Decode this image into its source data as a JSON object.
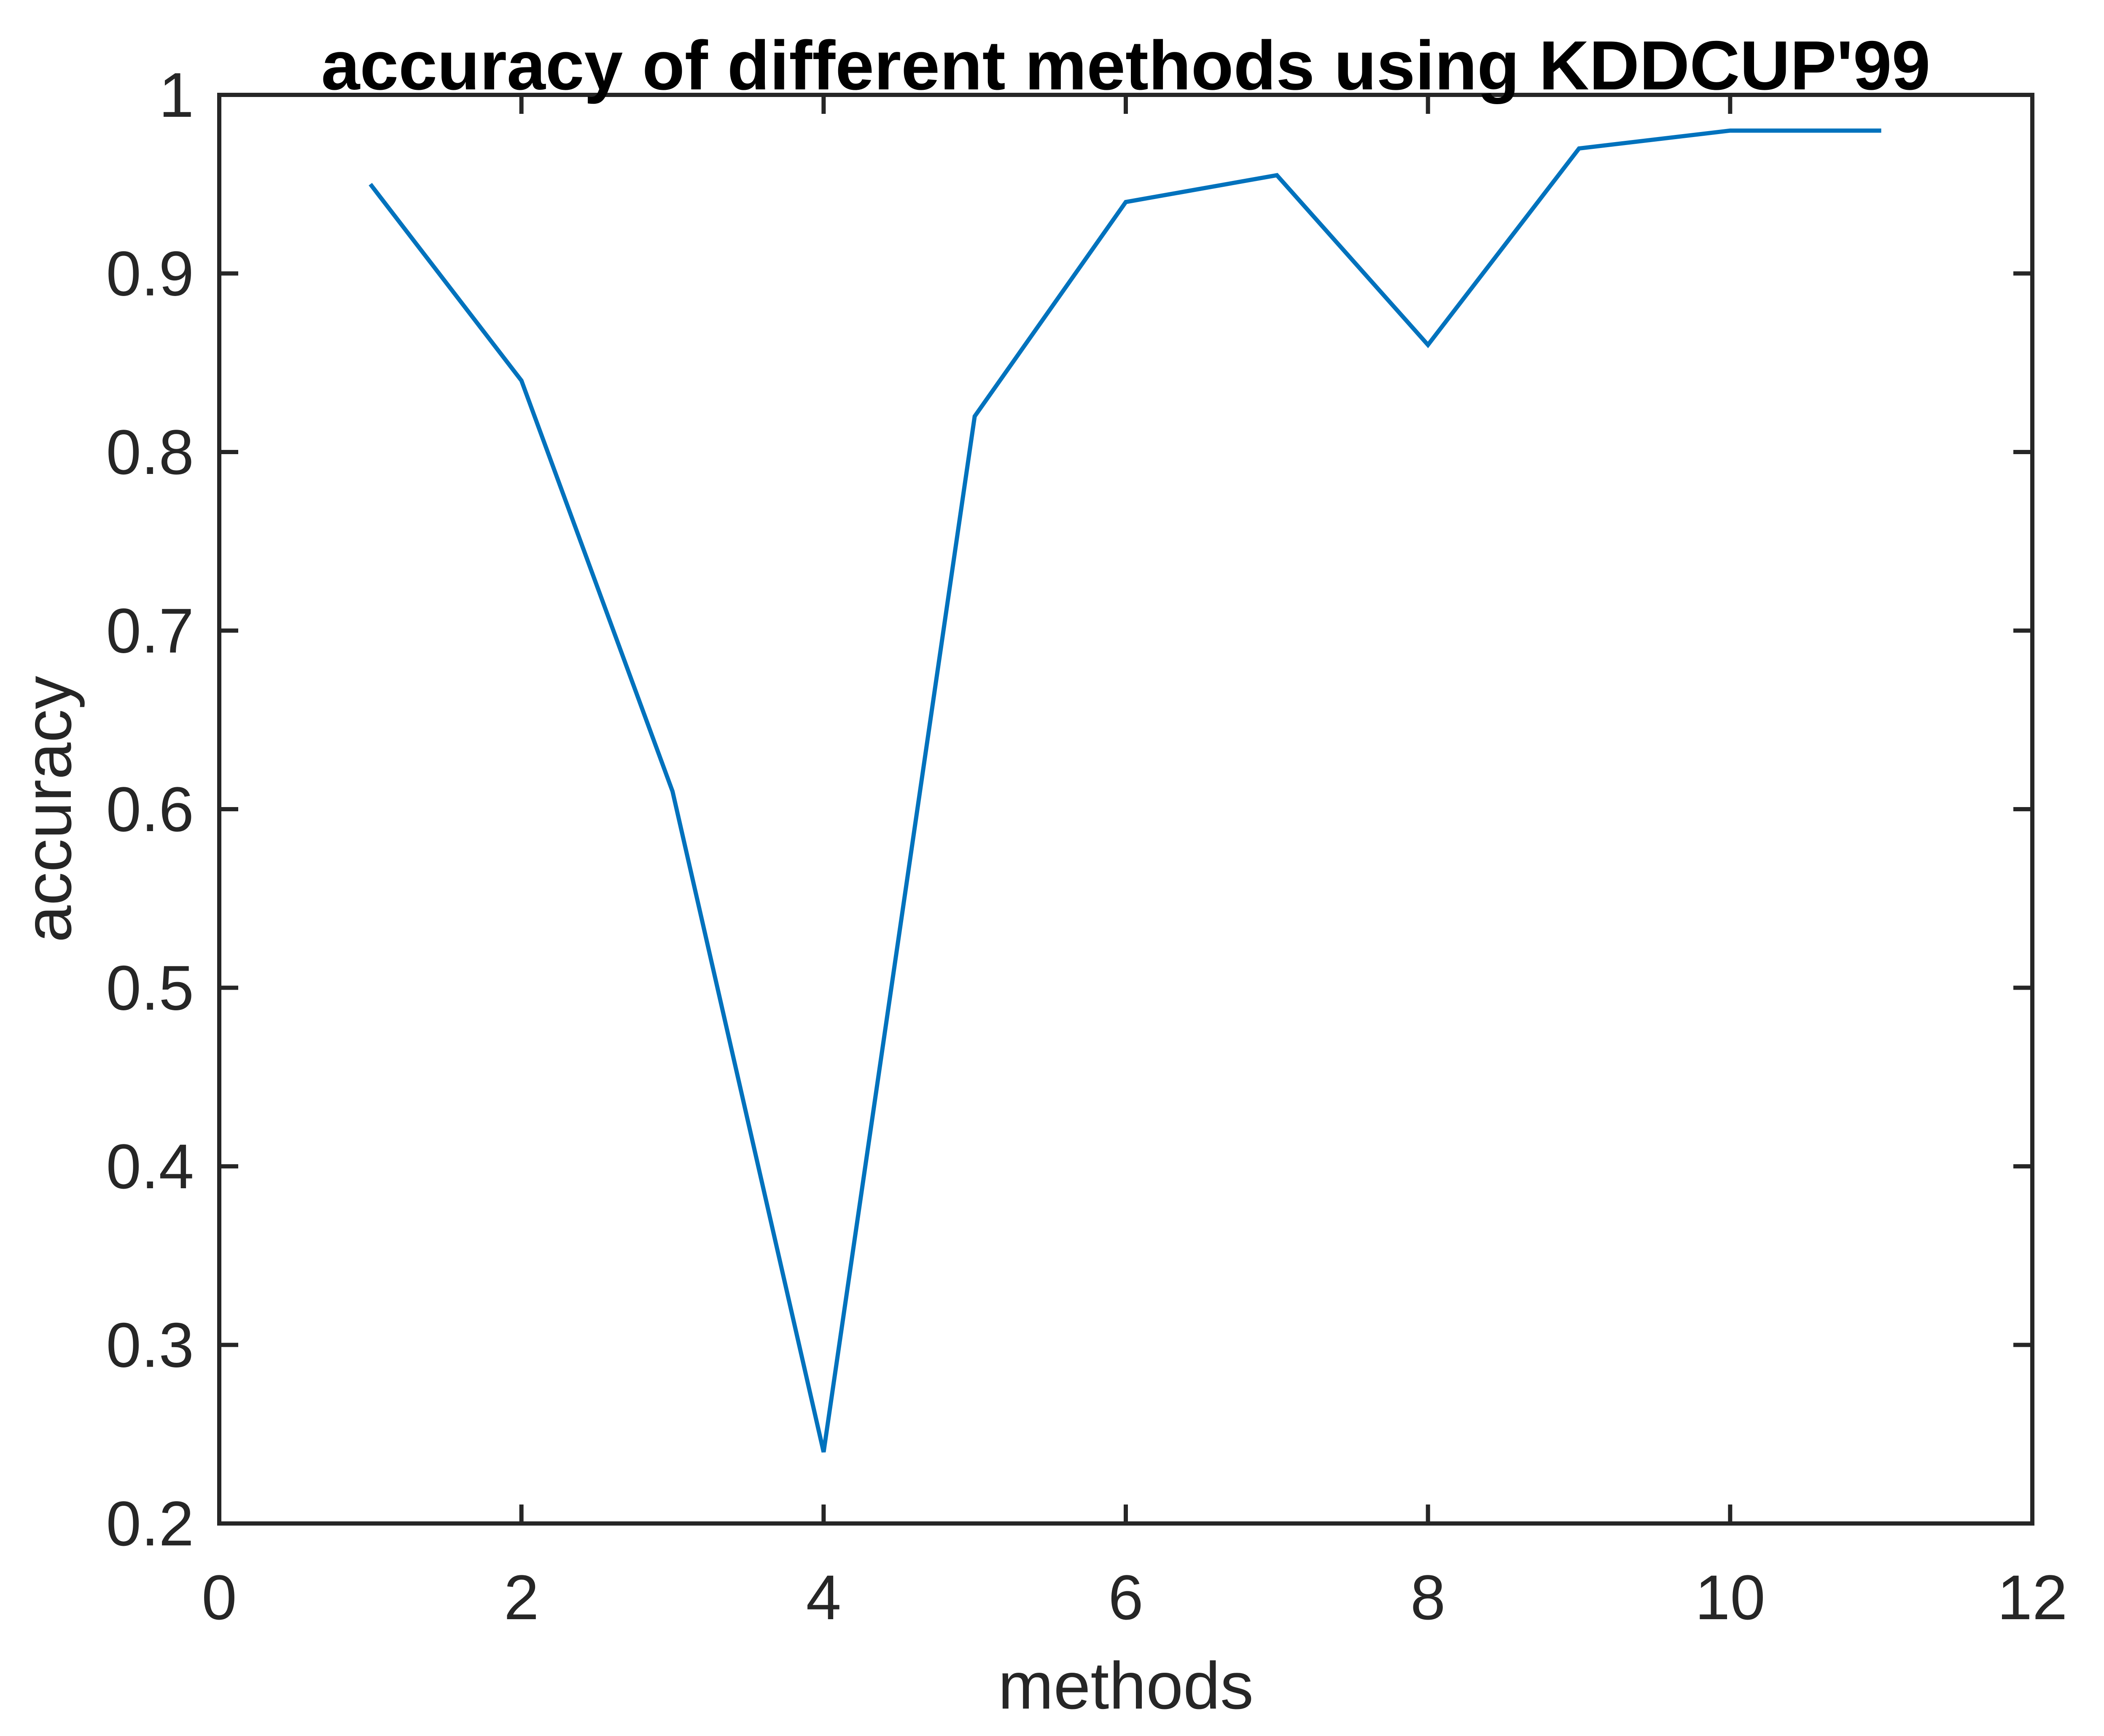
{
  "chart_data": {
    "type": "line",
    "title": "accuracy of different methods using KDDCUP'99",
    "xlabel": "methods",
    "ylabel": "accuracy",
    "x": [
      1,
      2,
      3,
      4,
      5,
      6,
      7,
      8,
      9,
      10,
      11
    ],
    "series": [
      {
        "name": "accuracy",
        "values": [
          0.95,
          0.84,
          0.61,
          0.24,
          0.82,
          0.94,
          0.955,
          0.86,
          0.97,
          0.98,
          0.98
        ]
      }
    ],
    "xlim": [
      0,
      12
    ],
    "ylim": [
      0.2,
      1
    ],
    "x_ticks": [
      {
        "value": 0,
        "label": "0"
      },
      {
        "value": 2,
        "label": "2"
      },
      {
        "value": 4,
        "label": "4"
      },
      {
        "value": 6,
        "label": "6"
      },
      {
        "value": 8,
        "label": "8"
      },
      {
        "value": 10,
        "label": "10"
      },
      {
        "value": 12,
        "label": "12"
      }
    ],
    "y_ticks": [
      {
        "value": 0.2,
        "label": "0.2"
      },
      {
        "value": 0.3,
        "label": "0.3"
      },
      {
        "value": 0.4,
        "label": "0.4"
      },
      {
        "value": 0.5,
        "label": "0.5"
      },
      {
        "value": 0.6,
        "label": "0.6"
      },
      {
        "value": 0.7,
        "label": "0.7"
      },
      {
        "value": 0.8,
        "label": "0.8"
      },
      {
        "value": 0.9,
        "label": "0.9"
      },
      {
        "value": 1,
        "label": "1"
      }
    ],
    "grid": false,
    "legend": null,
    "box": true,
    "tick_direction": "in",
    "colors": {
      "line": "#0072bd",
      "axis": "#262626",
      "title": "#000000",
      "background": "#ffffff"
    }
  }
}
